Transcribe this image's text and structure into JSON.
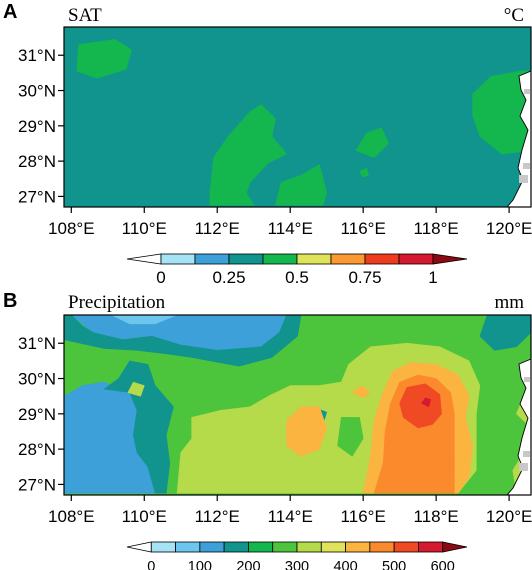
{
  "chart_data": [
    {
      "type": "heatmap",
      "panel": "A",
      "title": "SAT",
      "unit": "°C",
      "x_ticks": [
        "108°E",
        "110°E",
        "112°E",
        "114°E",
        "116°E",
        "118°E",
        "120°E"
      ],
      "y_ticks": [
        "31°N",
        "30°N",
        "29°N",
        "28°N",
        "27°N"
      ],
      "x_range": [
        107.8,
        120.6
      ],
      "y_range": [
        26.7,
        31.8
      ],
      "levels": [
        "0",
        "0.25",
        "0.5",
        "0.75",
        "1"
      ],
      "colorbar_colors": [
        "#ffffff",
        "#a6e3f5",
        "#3da0d8",
        "#12948e",
        "#13b74d",
        "#dfe35a",
        "#fb9a32",
        "#f03c1e",
        "#d51a30",
        "#8b0a12"
      ],
      "background_color": "#12948e",
      "regions": [
        {
          "value": 0.45,
          "color": "#13b74d",
          "points": [
            [
              108.2,
              31.3
            ],
            [
              109.2,
              31.45
            ],
            [
              109.65,
              31.15
            ],
            [
              109.5,
              30.6
            ],
            [
              108.7,
              30.35
            ],
            [
              108.15,
              30.55
            ]
          ]
        },
        {
          "value": 0.45,
          "color": "#13b74d",
          "points": [
            [
              111.8,
              27.1
            ],
            [
              111.9,
              28.1
            ],
            [
              112.3,
              28.7
            ],
            [
              112.9,
              29.4
            ],
            [
              113.2,
              29.6
            ],
            [
              113.6,
              29.2
            ],
            [
              113.5,
              28.7
            ],
            [
              113.9,
              28.2
            ],
            [
              113.4,
              27.95
            ],
            [
              112.9,
              27.4
            ],
            [
              112.8,
              27.1
            ],
            [
              113.0,
              26.75
            ],
            [
              111.8,
              26.75
            ]
          ]
        },
        {
          "value": 0.45,
          "color": "#13b74d",
          "points": [
            [
              113.6,
              26.75
            ],
            [
              113.75,
              27.4
            ],
            [
              114.3,
              27.6
            ],
            [
              114.8,
              27.9
            ],
            [
              115.0,
              27.1
            ],
            [
              114.9,
              26.75
            ]
          ]
        },
        {
          "value": 0.45,
          "color": "#13b74d",
          "points": [
            [
              115.8,
              28.3
            ],
            [
              116.1,
              28.8
            ],
            [
              116.5,
              28.95
            ],
            [
              116.7,
              28.5
            ],
            [
              116.3,
              28.1
            ]
          ]
        },
        {
          "value": 0.45,
          "color": "#13b74d",
          "points": [
            [
              119.0,
              29.9
            ],
            [
              119.5,
              30.4
            ],
            [
              120.3,
              30.55
            ],
            [
              120.6,
              30.55
            ],
            [
              120.6,
              28.3
            ],
            [
              119.8,
              28.2
            ],
            [
              119.2,
              28.7
            ],
            [
              119.0,
              29.3
            ]
          ]
        },
        {
          "value": 0.45,
          "color": "#13b74d",
          "points": [
            [
              115.9,
              27.7
            ],
            [
              116.1,
              27.8
            ],
            [
              116.15,
              27.6
            ],
            [
              116.0,
              27.55
            ]
          ]
        }
      ]
    },
    {
      "type": "heatmap",
      "panel": "B",
      "title": "Precipitation",
      "unit": "mm",
      "x_ticks": [
        "108°E",
        "110°E",
        "112°E",
        "114°E",
        "116°E",
        "118°E",
        "120°E"
      ],
      "y_ticks": [
        "31°N",
        "30°N",
        "29°N",
        "28°N",
        "27°N"
      ],
      "x_range": [
        107.8,
        120.6
      ],
      "y_range": [
        26.7,
        31.8
      ],
      "levels": [
        "0",
        "100",
        "200",
        "300",
        "400",
        "500",
        "600"
      ],
      "colorbar_colors": [
        "#ffffff",
        "#a6e3f5",
        "#6cc6ee",
        "#3da0d8",
        "#12948e",
        "#13b74d",
        "#4cc43c",
        "#b5da4a",
        "#dfe35a",
        "#fbb440",
        "#fb8a2d",
        "#f04a24",
        "#d51a30",
        "#8b0a12"
      ],
      "background_color": "#4cc43c",
      "regions": [
        {
          "value": 150,
          "color": "#3da0d8",
          "points": [
            [
              107.8,
              26.75
            ],
            [
              107.8,
              29.5
            ],
            [
              108.3,
              29.8
            ],
            [
              108.9,
              29.9
            ],
            [
              109.6,
              29.6
            ],
            [
              109.8,
              29.1
            ],
            [
              109.7,
              28.4
            ],
            [
              109.8,
              27.9
            ],
            [
              110.1,
              27.5
            ],
            [
              110.3,
              26.75
            ]
          ]
        },
        {
          "value": 250,
          "color": "#12948e",
          "points": [
            [
              108.9,
              29.7
            ],
            [
              109.3,
              30.0
            ],
            [
              109.6,
              30.5
            ],
            [
              110.1,
              30.4
            ],
            [
              110.3,
              29.8
            ],
            [
              110.8,
              29.2
            ],
            [
              110.6,
              28.4
            ],
            [
              110.7,
              27.6
            ],
            [
              110.6,
              26.75
            ],
            [
              110.3,
              26.75
            ],
            [
              110.1,
              27.5
            ],
            [
              109.8,
              27.9
            ],
            [
              109.7,
              28.4
            ],
            [
              109.8,
              29.1
            ],
            [
              109.6,
              29.6
            ]
          ]
        },
        {
          "value": 150,
          "color": "#3da0d8",
          "points": [
            [
              108.0,
              31.8
            ],
            [
              108.6,
              31.3
            ],
            [
              109.4,
              31.1
            ],
            [
              110.2,
              31.2
            ],
            [
              111.0,
              30.95
            ],
            [
              112.0,
              30.8
            ],
            [
              113.2,
              30.9
            ],
            [
              113.7,
              31.3
            ],
            [
              113.9,
              31.8
            ]
          ]
        },
        {
          "value": 250,
          "color": "#12948e",
          "points": [
            [
              108.0,
              31.8
            ],
            [
              108.3,
              31.5
            ],
            [
              108.6,
              31.3
            ],
            [
              109.4,
              31.1
            ],
            [
              110.2,
              31.2
            ],
            [
              111.0,
              30.95
            ],
            [
              112.0,
              30.8
            ],
            [
              113.2,
              30.9
            ],
            [
              113.7,
              31.3
            ],
            [
              113.9,
              31.8
            ],
            [
              114.3,
              31.8
            ],
            [
              114.2,
              31.2
            ],
            [
              113.5,
              30.6
            ],
            [
              112.6,
              30.35
            ],
            [
              111.3,
              30.6
            ],
            [
              110.6,
              30.7
            ],
            [
              109.8,
              30.8
            ],
            [
              108.9,
              30.85
            ],
            [
              107.8,
              31.1
            ],
            [
              107.8,
              31.8
            ]
          ]
        },
        {
          "value": 100,
          "color": "#6cc6ee",
          "points": [
            [
              109.1,
              31.8
            ],
            [
              109.6,
              31.55
            ],
            [
              110.3,
              31.55
            ],
            [
              110.9,
              31.8
            ]
          ]
        },
        {
          "value": 250,
          "color": "#12948e",
          "points": [
            [
              119.4,
              31.8
            ],
            [
              119.2,
              31.2
            ],
            [
              119.6,
              30.8
            ],
            [
              120.2,
              30.9
            ],
            [
              120.6,
              31.3
            ],
            [
              120.6,
              31.8
            ]
          ]
        },
        {
          "value": 350,
          "color": "#b5da4a",
          "points": [
            [
              110.9,
              26.75
            ],
            [
              111.0,
              27.9
            ],
            [
              111.3,
              28.3
            ],
            [
              111.3,
              28.9
            ],
            [
              112.1,
              29.1
            ],
            [
              112.9,
              29.2
            ],
            [
              113.4,
              29.5
            ],
            [
              114.0,
              29.8
            ],
            [
              114.8,
              29.8
            ],
            [
              115.4,
              29.9
            ],
            [
              115.6,
              30.4
            ],
            [
              116.2,
              30.9
            ],
            [
              117.2,
              31.0
            ],
            [
              118.1,
              30.9
            ],
            [
              118.9,
              30.5
            ],
            [
              119.2,
              29.8
            ],
            [
              119.1,
              29.0
            ],
            [
              119.1,
              28.2
            ],
            [
              119.1,
              27.4
            ],
            [
              118.6,
              26.75
            ]
          ]
        },
        {
          "value": 250,
          "color": "#12948e",
          "points": [
            [
              114.4,
              28.8
            ],
            [
              114.6,
              29.2
            ],
            [
              115.0,
              29.05
            ],
            [
              114.9,
              28.7
            ]
          ]
        },
        {
          "value": 350,
          "color": "#b5da4a",
          "points": [
            [
              109.55,
              29.6
            ],
            [
              109.7,
              29.9
            ],
            [
              110.0,
              29.8
            ],
            [
              109.9,
              29.5
            ]
          ]
        },
        {
          "value": 300,
          "color": "#4cc43c",
          "points": [
            [
              115.3,
              28.1
            ],
            [
              115.4,
              28.9
            ],
            [
              115.9,
              28.9
            ],
            [
              116.0,
              28.3
            ],
            [
              115.7,
              27.8
            ]
          ]
        },
        {
          "value": 450,
          "color": "#fbb440",
          "points": [
            [
              113.9,
              28.1
            ],
            [
              113.9,
              28.8
            ],
            [
              114.3,
              29.2
            ],
            [
              114.8,
              29.2
            ],
            [
              115.0,
              28.6
            ],
            [
              114.8,
              28.0
            ],
            [
              114.3,
              27.8
            ]
          ]
        },
        {
          "value": 450,
          "color": "#fbb440",
          "points": [
            [
              116.0,
              26.75
            ],
            [
              116.2,
              27.8
            ],
            [
              116.3,
              28.8
            ],
            [
              116.5,
              29.5
            ],
            [
              116.8,
              30.2
            ],
            [
              117.3,
              30.45
            ],
            [
              118.0,
              30.4
            ],
            [
              118.6,
              30.1
            ],
            [
              118.9,
              29.5
            ],
            [
              118.8,
              28.9
            ],
            [
              119.0,
              28.1
            ],
            [
              118.9,
              27.2
            ],
            [
              118.6,
              26.75
            ]
          ]
        },
        {
          "value": 550,
          "color": "#fb8a2d",
          "points": [
            [
              116.3,
              26.75
            ],
            [
              116.55,
              27.6
            ],
            [
              116.6,
              28.5
            ],
            [
              116.75,
              29.3
            ],
            [
              117.0,
              29.9
            ],
            [
              117.5,
              30.1
            ],
            [
              118.0,
              30.0
            ],
            [
              118.4,
              29.6
            ],
            [
              118.5,
              29.0
            ],
            [
              118.5,
              28.0
            ],
            [
              118.5,
              26.75
            ]
          ]
        },
        {
          "value": 600,
          "color": "#f04a24",
          "points": [
            [
              117.0,
              29.3
            ],
            [
              117.2,
              29.75
            ],
            [
              117.7,
              29.85
            ],
            [
              118.1,
              29.55
            ],
            [
              118.15,
              29.0
            ],
            [
              117.9,
              28.7
            ],
            [
              117.5,
              28.6
            ],
            [
              117.1,
              28.9
            ]
          ]
        },
        {
          "value": 650,
          "color": "#d51a30",
          "points": [
            [
              117.6,
              29.3
            ],
            [
              117.7,
              29.45
            ],
            [
              117.85,
              29.4
            ],
            [
              117.8,
              29.2
            ]
          ]
        },
        {
          "value": 450,
          "color": "#fbb440",
          "points": [
            [
              115.7,
              29.6
            ],
            [
              115.95,
              29.8
            ],
            [
              116.2,
              29.6
            ],
            [
              116.0,
              29.45
            ]
          ]
        },
        {
          "value": 350,
          "color": "#b5da4a",
          "points": [
            [
              120.1,
              27.4
            ],
            [
              120.4,
              27.9
            ],
            [
              120.6,
              27.9
            ],
            [
              120.6,
              26.75
            ],
            [
              120.2,
              26.75
            ]
          ]
        },
        {
          "value": 350,
          "color": "#b5da4a",
          "points": [
            [
              120.2,
              29.0
            ],
            [
              120.4,
              29.5
            ],
            [
              120.6,
              29.4
            ],
            [
              120.6,
              28.6
            ]
          ]
        }
      ]
    }
  ]
}
